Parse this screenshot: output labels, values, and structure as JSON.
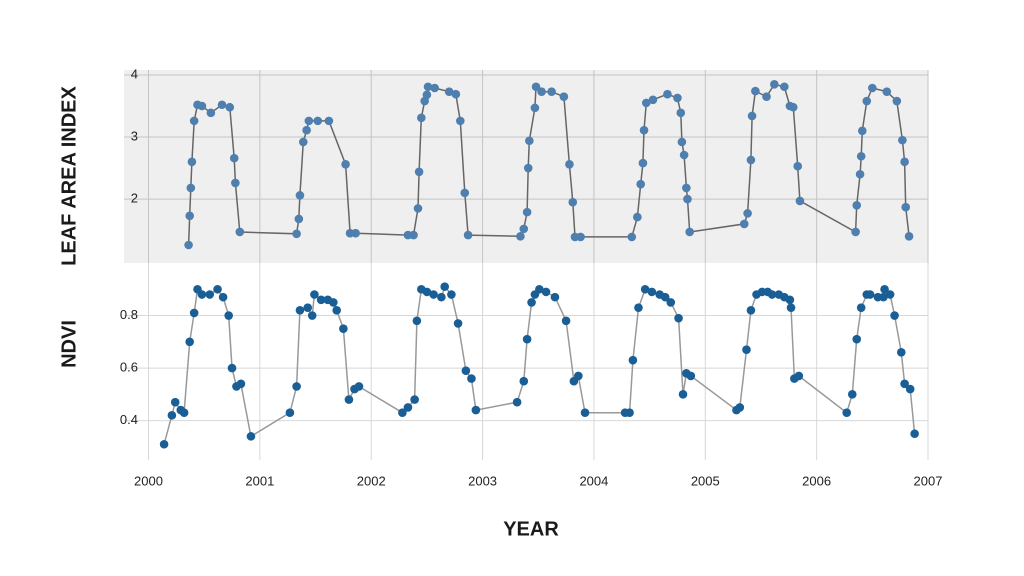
{
  "chart_data": [
    {
      "type": "line",
      "ylabel": "LEAF AREA INDEX",
      "color": "#4f7fae",
      "line_color": "#666666",
      "background": "#efefef",
      "grid": true,
      "xlim": [
        1999.78,
        2007
      ],
      "xticks": [
        2000,
        2001,
        2002,
        2003,
        2004,
        2005,
        2006,
        2007
      ],
      "ylim": [
        0.97,
        4.08
      ],
      "yticks": [
        2,
        3,
        4
      ],
      "x": [
        2000.36,
        2000.37,
        2000.38,
        2000.39,
        2000.41,
        2000.44,
        2000.48,
        2000.56,
        2000.66,
        2000.73,
        2000.77,
        2000.78,
        2000.82,
        2001.33,
        2001.35,
        2001.36,
        2001.39,
        2001.42,
        2001.44,
        2001.52,
        2001.62,
        2001.77,
        2001.81,
        2001.86,
        2002.33,
        2002.38,
        2002.42,
        2002.43,
        2002.45,
        2002.48,
        2002.5,
        2002.51,
        2002.57,
        2002.7,
        2002.76,
        2002.8,
        2002.84,
        2002.87,
        2003.34,
        2003.37,
        2003.4,
        2003.41,
        2003.42,
        2003.47,
        2003.48,
        2003.53,
        2003.62,
        2003.73,
        2003.78,
        2003.81,
        2003.83,
        2003.88,
        2004.34,
        2004.39,
        2004.42,
        2004.44,
        2004.45,
        2004.47,
        2004.53,
        2004.66,
        2004.75,
        2004.78,
        2004.79,
        2004.81,
        2004.83,
        2004.84,
        2004.86,
        2005.35,
        2005.38,
        2005.41,
        2005.42,
        2005.45,
        2005.55,
        2005.62,
        2005.71,
        2005.76,
        2005.79,
        2005.83,
        2005.85,
        2006.35,
        2006.36,
        2006.39,
        2006.4,
        2006.41,
        2006.45,
        2006.5,
        2006.63,
        2006.72,
        2006.77,
        2006.79,
        2006.8,
        2006.83
      ],
      "values": [
        1.26,
        1.73,
        2.18,
        2.6,
        3.26,
        3.52,
        3.5,
        3.39,
        3.52,
        3.48,
        2.66,
        2.26,
        1.47,
        1.44,
        1.68,
        2.06,
        2.92,
        3.11,
        3.26,
        3.26,
        3.26,
        2.56,
        1.45,
        1.45,
        1.42,
        1.42,
        1.85,
        2.44,
        3.31,
        3.58,
        3.68,
        3.81,
        3.79,
        3.73,
        3.69,
        3.26,
        2.1,
        1.42,
        1.4,
        1.52,
        1.79,
        2.5,
        2.94,
        3.47,
        3.81,
        3.73,
        3.73,
        3.65,
        2.56,
        1.95,
        1.39,
        1.39,
        1.39,
        1.71,
        2.24,
        2.58,
        3.11,
        3.55,
        3.6,
        3.69,
        3.63,
        3.39,
        2.92,
        2.71,
        2.18,
        2.0,
        1.47,
        1.6,
        1.77,
        2.63,
        3.34,
        3.74,
        3.65,
        3.85,
        3.81,
        3.5,
        3.48,
        2.53,
        1.97,
        1.47,
        1.9,
        2.4,
        2.69,
        3.1,
        3.58,
        3.79,
        3.73,
        3.58,
        2.95,
        2.6,
        1.87,
        1.4
      ]
    },
    {
      "type": "line",
      "ylabel": "NDVI",
      "xlabel": "YEAR",
      "color": "#1a5e96",
      "line_color": "#999999",
      "background": "#ffffff",
      "grid": true,
      "xlim": [
        1999.78,
        2007
      ],
      "xticks": [
        2000,
        2001,
        2002,
        2003,
        2004,
        2005,
        2006,
        2007
      ],
      "ylim": [
        0.25,
        1.0
      ],
      "yticks": [
        0.4,
        0.6,
        0.8
      ],
      "x": [
        2000.14,
        2000.21,
        2000.24,
        2000.29,
        2000.32,
        2000.37,
        2000.41,
        2000.44,
        2000.48,
        2000.55,
        2000.62,
        2000.67,
        2000.72,
        2000.75,
        2000.79,
        2000.83,
        2000.92,
        2001.27,
        2001.33,
        2001.36,
        2001.43,
        2001.47,
        2001.49,
        2001.55,
        2001.61,
        2001.66,
        2001.69,
        2001.75,
        2001.8,
        2001.85,
        2001.89,
        2002.28,
        2002.33,
        2002.39,
        2002.41,
        2002.45,
        2002.5,
        2002.56,
        2002.63,
        2002.66,
        2002.72,
        2002.78,
        2002.85,
        2002.9,
        2002.94,
        2003.31,
        2003.37,
        2003.4,
        2003.44,
        2003.47,
        2003.51,
        2003.57,
        2003.65,
        2003.75,
        2003.82,
        2003.86,
        2003.92,
        2004.28,
        2004.32,
        2004.35,
        2004.4,
        2004.46,
        2004.52,
        2004.59,
        2004.64,
        2004.69,
        2004.76,
        2004.8,
        2004.83,
        2004.87,
        2005.28,
        2005.31,
        2005.37,
        2005.41,
        2005.46,
        2005.51,
        2005.56,
        2005.6,
        2005.66,
        2005.71,
        2005.76,
        2005.77,
        2005.8,
        2005.84,
        2006.27,
        2006.32,
        2006.36,
        2006.4,
        2006.45,
        2006.48,
        2006.55,
        2006.6,
        2006.61,
        2006.66,
        2006.7,
        2006.76,
        2006.79,
        2006.84,
        2006.88
      ],
      "values": [
        0.31,
        0.42,
        0.47,
        0.44,
        0.43,
        0.7,
        0.81,
        0.9,
        0.88,
        0.88,
        0.9,
        0.87,
        0.8,
        0.6,
        0.53,
        0.54,
        0.34,
        0.43,
        0.53,
        0.82,
        0.83,
        0.8,
        0.88,
        0.86,
        0.86,
        0.85,
        0.82,
        0.75,
        0.48,
        0.52,
        0.53,
        0.43,
        0.45,
        0.48,
        0.78,
        0.9,
        0.89,
        0.88,
        0.87,
        0.91,
        0.88,
        0.77,
        0.59,
        0.56,
        0.44,
        0.47,
        0.55,
        0.71,
        0.85,
        0.88,
        0.9,
        0.89,
        0.87,
        0.78,
        0.55,
        0.57,
        0.43,
        0.43,
        0.43,
        0.63,
        0.83,
        0.9,
        0.89,
        0.88,
        0.87,
        0.85,
        0.79,
        0.5,
        0.58,
        0.57,
        0.44,
        0.45,
        0.67,
        0.82,
        0.88,
        0.89,
        0.89,
        0.88,
        0.88,
        0.87,
        0.86,
        0.83,
        0.56,
        0.57,
        0.43,
        0.5,
        0.71,
        0.83,
        0.88,
        0.88,
        0.87,
        0.87,
        0.9,
        0.88,
        0.8,
        0.66,
        0.54,
        0.52,
        0.35
      ]
    }
  ]
}
